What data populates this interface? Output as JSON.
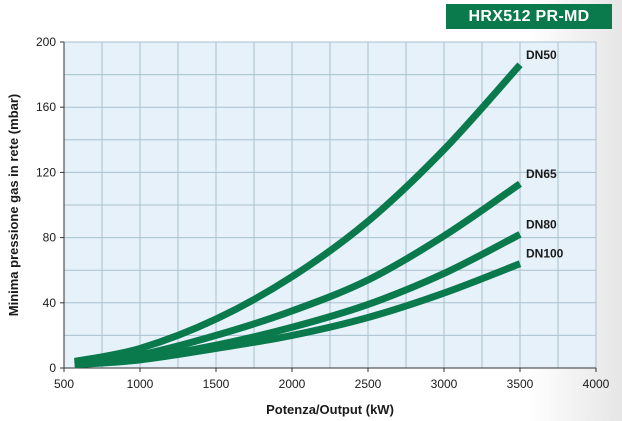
{
  "badge": "HRX512 PR-MD",
  "chart_data": {
    "type": "line",
    "title": "",
    "xlabel": "Potenza/Output (kW)",
    "ylabel": "Minima pressione gas in rete (mbar)",
    "xlim": [
      500,
      4000
    ],
    "ylim": [
      0,
      200
    ],
    "x_ticks": [
      500,
      1000,
      1500,
      2000,
      2500,
      3000,
      3500,
      4000
    ],
    "y_ticks": [
      0,
      40,
      80,
      120,
      160,
      200
    ],
    "grid": true,
    "legend": "none",
    "line_color": "#0a7a4c",
    "grid_color": "#a9c1cf",
    "plot_background": "#e6f1fa",
    "series": [
      {
        "name": "DN50",
        "x": [
          570,
          1000,
          1500,
          2000,
          2500,
          3000,
          3500
        ],
        "y": [
          4,
          12,
          30,
          56,
          90,
          134,
          186
        ]
      },
      {
        "name": "DN65",
        "x": [
          570,
          1000,
          1500,
          2000,
          2500,
          3000,
          3500
        ],
        "y": [
          3,
          8,
          20,
          35,
          54,
          81,
          113
        ]
      },
      {
        "name": "DN80",
        "x": [
          570,
          1000,
          1500,
          2000,
          2500,
          3000,
          3500
        ],
        "y": [
          2,
          6,
          14,
          25,
          39,
          58,
          82
        ]
      },
      {
        "name": "DN100",
        "x": [
          570,
          1000,
          1500,
          2000,
          2500,
          3000,
          3500
        ],
        "y": [
          2,
          5,
          12,
          20,
          31,
          46,
          64
        ]
      }
    ]
  }
}
